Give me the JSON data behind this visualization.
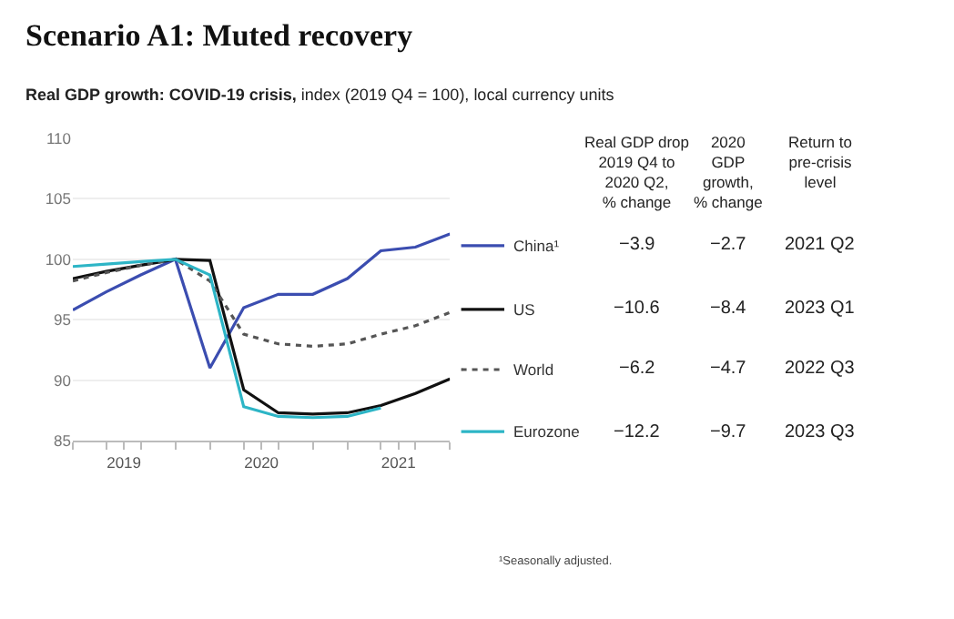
{
  "chart_data": {
    "type": "line",
    "title": "Scenario A1: Muted recovery",
    "subtitle": "Real GDP growth: COVID-19 crisis, index (2019 Q4 = 100), local currency units",
    "x": [
      "2019-02-15",
      "2019-05-15",
      "2019-08-15",
      "2019-11-15",
      "2020-02-15",
      "2020-05-15",
      "2020-08-15",
      "2020-11-15",
      "2021-02-15",
      "2021-05-15",
      "2021-08-15",
      "2021-11-15"
    ],
    "series": [
      {
        "name": "China¹",
        "color": "#3b4db0",
        "line_style": "solid",
        "values": [
          95.8,
          97.3,
          98.7,
          100,
          91,
          96,
          97.1,
          97.1,
          98.4,
          100.7,
          101,
          102.1
        ]
      },
      {
        "name": "US",
        "color": "#111111",
        "line_style": "solid",
        "values": [
          98.4,
          99,
          99.5,
          100,
          99.9,
          89.2,
          87.3,
          87.2,
          87.3,
          87.9,
          88.9,
          90.1
        ]
      },
      {
        "name": "World",
        "color": "#555555",
        "line_style": "dotted",
        "values": [
          98.2,
          98.9,
          99.5,
          100,
          98.2,
          93.8,
          93,
          92.8,
          93,
          93.8,
          94.5,
          95.6
        ]
      },
      {
        "name": "Eurozone",
        "color": "#2db5c6",
        "line_style": "solid",
        "values": [
          99.4,
          99.6,
          99.8,
          100,
          98.7,
          87.8,
          87,
          86.9,
          87,
          87.7,
          null,
          null
        ]
      }
    ],
    "xlim": [
      "2019-02-15",
      "2021-11-15"
    ],
    "xticks": [
      {
        "value": "2019-02-15",
        "label": null
      },
      {
        "value": "2019-05-15",
        "label": null
      },
      {
        "value": "2019-07-01",
        "label": "2019"
      },
      {
        "value": "2019-08-15",
        "label": null
      },
      {
        "value": "2019-11-15",
        "label": null
      },
      {
        "value": "2020-02-15",
        "label": null
      },
      {
        "value": "2020-05-15",
        "label": null
      },
      {
        "value": "2020-07-01",
        "label": "2020"
      },
      {
        "value": "2020-08-15",
        "label": null
      },
      {
        "value": "2020-11-15",
        "label": null
      },
      {
        "value": "2021-02-15",
        "label": null
      },
      {
        "value": "2021-05-15",
        "label": null
      },
      {
        "value": "2021-07-01",
        "label": "2021"
      },
      {
        "value": "2021-08-15",
        "label": null
      },
      {
        "value": "2021-11-15",
        "label": null
      }
    ],
    "ylim": [
      85,
      110
    ],
    "yticks": [
      85,
      90,
      95,
      100,
      105,
      110
    ],
    "grid": "y",
    "legend": "right",
    "marker": "none",
    "annotations": [
      "Real GDP drop\n2019 Q4 to\n2020 Q2,\n% change",
      "2020\nGDP\ngrowth,\n% change",
      "Return to\npre-crisis\nlevel",
      "−3.9",
      "−2.7",
      "2021 Q2",
      "−10.6",
      "−8.4",
      "2023 Q1",
      "−6.2",
      "−4.7",
      "2022 Q3",
      "−12.2",
      "−9.7",
      "2023 Q3",
      "¹Seasonally adjusted."
    ]
  }
}
